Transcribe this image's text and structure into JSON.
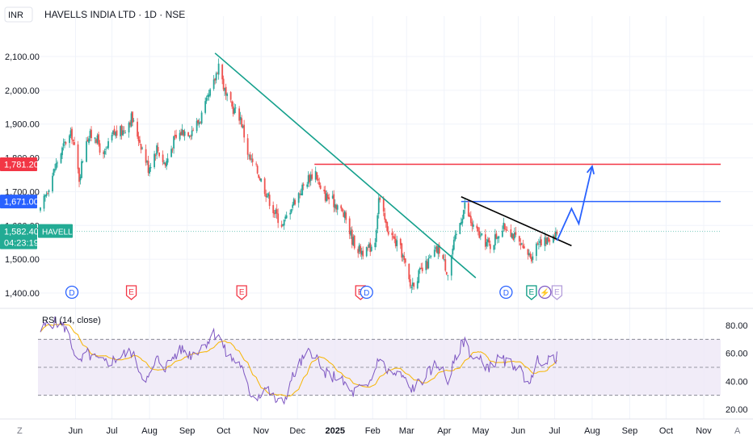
{
  "header": {
    "currency": "INR",
    "title": "HAVELLS INDIA LTD · 1D · NSE"
  },
  "colors": {
    "up": "#26a69a",
    "down": "#ef5350",
    "trendline_green": "#14a08c",
    "trendline_black": "#000000",
    "resistance_red": "#f23645",
    "support_blue": "#2962ff",
    "projection_blue": "#2962ff",
    "rsi_line": "#7e57c2",
    "rsi_ma": "#f7b500",
    "rsi_band": "#ede7f6",
    "price_tag_green": "#22ab94"
  },
  "price_axis": {
    "ticks": [
      {
        "label": "2,100.00",
        "value": 2100
      },
      {
        "label": "2,000.00",
        "value": 2000
      },
      {
        "label": "1,900.00",
        "value": 1900
      },
      {
        "label": "1,800.00",
        "value": 1800
      },
      {
        "label": "1,700.00",
        "value": 1700
      },
      {
        "label": "1,600.00",
        "value": 1600
      },
      {
        "label": "1,500.00",
        "value": 1500
      },
      {
        "label": "1,400.00",
        "value": 1400
      }
    ],
    "tag_red": "1,781.20",
    "tag_blue": "1,671.00",
    "tag_last_price": "1,582.40",
    "tag_countdown": "04:23:19",
    "symbol_tag": "HAVELLS"
  },
  "time_axis": {
    "labels": [
      {
        "text": "Jun",
        "bold": false
      },
      {
        "text": "Jul",
        "bold": false
      },
      {
        "text": "Aug",
        "bold": false
      },
      {
        "text": "Sep",
        "bold": false
      },
      {
        "text": "Oct",
        "bold": false
      },
      {
        "text": "Nov",
        "bold": false
      },
      {
        "text": "Dec",
        "bold": false
      },
      {
        "text": "2025",
        "bold": true
      },
      {
        "text": "Feb",
        "bold": false
      },
      {
        "text": "Mar",
        "bold": false
      },
      {
        "text": "Apr",
        "bold": false
      },
      {
        "text": "May",
        "bold": false
      },
      {
        "text": "Jun",
        "bold": false
      },
      {
        "text": "Jul",
        "bold": false
      },
      {
        "text": "Aug",
        "bold": false
      },
      {
        "text": "Sep",
        "bold": false
      },
      {
        "text": "Oct",
        "bold": false
      },
      {
        "text": "Nov",
        "bold": false
      }
    ],
    "z_label": "Z",
    "a_label": "A"
  },
  "event_markers": [
    {
      "letter": "D",
      "kind": "dividend",
      "date": "2024-05-29"
    },
    {
      "letter": "E",
      "kind": "earnings",
      "date": "2024-07-17"
    },
    {
      "letter": "E",
      "kind": "earnings",
      "date": "2024-10-16"
    },
    {
      "letter": "E",
      "kind": "earnings",
      "date": "2025-01-22"
    },
    {
      "letter": "D",
      "kind": "dividend",
      "date": "2025-01-27"
    },
    {
      "letter": "D",
      "kind": "dividend",
      "date": "2025-05-22"
    },
    {
      "letter": "E",
      "kind": "earnings-green",
      "date": "2025-06-12"
    },
    {
      "letter": "⚡",
      "kind": "split",
      "date": "2025-06-23"
    },
    {
      "letter": "E",
      "kind": "earnings-future",
      "date": "2025-07-03"
    }
  ],
  "rsi_panel": {
    "title": "RSI (14, close)",
    "ticks": [
      {
        "label": "80.00",
        "value": 80
      },
      {
        "label": "60.00",
        "value": 60
      },
      {
        "label": "40.00",
        "value": 40
      },
      {
        "label": "20.00",
        "value": 20
      }
    ],
    "upper_band": 70,
    "middle_band": 50,
    "lower_band": 30
  },
  "chart_data": {
    "type": "candlestick",
    "symbol": "HAVELLS",
    "interval": "1D",
    "x_range": [
      "2024-05-01",
      "2025-11-15"
    ],
    "price_range": [
      1350,
      2180
    ],
    "price_anchors": [
      {
        "date": "2024-05-03",
        "close": 1640
      },
      {
        "date": "2024-05-10",
        "close": 1720
      },
      {
        "date": "2024-05-17",
        "close": 1790
      },
      {
        "date": "2024-05-24",
        "close": 1850
      },
      {
        "date": "2024-05-29",
        "close": 1870
      },
      {
        "date": "2024-06-04",
        "close": 1740
      },
      {
        "date": "2024-06-10",
        "close": 1860
      },
      {
        "date": "2024-06-17",
        "close": 1870
      },
      {
        "date": "2024-06-24",
        "close": 1800
      },
      {
        "date": "2024-07-02",
        "close": 1870
      },
      {
        "date": "2024-07-10",
        "close": 1880
      },
      {
        "date": "2024-07-17",
        "close": 1920
      },
      {
        "date": "2024-07-25",
        "close": 1840
      },
      {
        "date": "2024-07-31",
        "close": 1770
      },
      {
        "date": "2024-08-07",
        "close": 1830
      },
      {
        "date": "2024-08-14",
        "close": 1780
      },
      {
        "date": "2024-08-21",
        "close": 1850
      },
      {
        "date": "2024-08-28",
        "close": 1880
      },
      {
        "date": "2024-09-04",
        "close": 1880
      },
      {
        "date": "2024-09-11",
        "close": 1910
      },
      {
        "date": "2024-09-18",
        "close": 1970
      },
      {
        "date": "2024-09-23",
        "close": 2020
      },
      {
        "date": "2024-09-27",
        "close": 2080
      },
      {
        "date": "2024-10-03",
        "close": 1980
      },
      {
        "date": "2024-10-08",
        "close": 1950
      },
      {
        "date": "2024-10-15",
        "close": 1920
      },
      {
        "date": "2024-10-22",
        "close": 1800
      },
      {
        "date": "2024-10-29",
        "close": 1760
      },
      {
        "date": "2024-11-05",
        "close": 1700
      },
      {
        "date": "2024-11-12",
        "close": 1640
      },
      {
        "date": "2024-11-19",
        "close": 1600
      },
      {
        "date": "2024-11-26",
        "close": 1660
      },
      {
        "date": "2024-12-03",
        "close": 1700
      },
      {
        "date": "2024-12-10",
        "close": 1740
      },
      {
        "date": "2024-12-16",
        "close": 1760
      },
      {
        "date": "2024-12-20",
        "close": 1700
      },
      {
        "date": "2024-12-27",
        "close": 1680
      },
      {
        "date": "2025-01-03",
        "close": 1660
      },
      {
        "date": "2025-01-10",
        "close": 1620
      },
      {
        "date": "2025-01-15",
        "close": 1560
      },
      {
        "date": "2025-01-20",
        "close": 1530
      },
      {
        "date": "2025-01-27",
        "close": 1520
      },
      {
        "date": "2025-02-03",
        "close": 1560
      },
      {
        "date": "2025-02-06",
        "close": 1680
      },
      {
        "date": "2025-02-12",
        "close": 1600
      },
      {
        "date": "2025-02-18",
        "close": 1560
      },
      {
        "date": "2025-02-25",
        "close": 1520
      },
      {
        "date": "2025-03-04",
        "close": 1420
      },
      {
        "date": "2025-03-10",
        "close": 1450
      },
      {
        "date": "2025-03-17",
        "close": 1480
      },
      {
        "date": "2025-03-24",
        "close": 1520
      },
      {
        "date": "2025-03-28",
        "close": 1530
      },
      {
        "date": "2025-04-04",
        "close": 1460
      },
      {
        "date": "2025-04-08",
        "close": 1530
      },
      {
        "date": "2025-04-14",
        "close": 1610
      },
      {
        "date": "2025-04-18",
        "close": 1660
      },
      {
        "date": "2025-04-24",
        "close": 1600
      },
      {
        "date": "2025-05-02",
        "close": 1560
      },
      {
        "date": "2025-05-09",
        "close": 1540
      },
      {
        "date": "2025-05-16",
        "close": 1580
      },
      {
        "date": "2025-05-23",
        "close": 1600
      },
      {
        "date": "2025-05-30",
        "close": 1560
      },
      {
        "date": "2025-06-06",
        "close": 1520
      },
      {
        "date": "2025-06-12",
        "close": 1510
      },
      {
        "date": "2025-06-18",
        "close": 1560
      },
      {
        "date": "2025-06-24",
        "close": 1550
      },
      {
        "date": "2025-06-30",
        "close": 1575
      },
      {
        "date": "2025-07-03",
        "close": 1582.4
      }
    ],
    "last_price": 1582.4,
    "horizontal_levels": [
      {
        "name": "resistance",
        "price": 1781.2,
        "from": "2024-12-15",
        "color": "#f23645"
      },
      {
        "name": "support",
        "price": 1671.0,
        "from": "2025-04-15",
        "color": "#2962ff"
      }
    ],
    "trendlines": [
      {
        "from": {
          "date": "2024-09-24",
          "price": 2110
        },
        "to": {
          "date": "2025-04-27",
          "price": 1445
        },
        "color": "#14a08c"
      },
      {
        "from": {
          "date": "2025-04-15",
          "price": 1685
        },
        "to": {
          "date": "2025-07-15",
          "price": 1540
        },
        "color": "#000000"
      }
    ],
    "projection_path": [
      {
        "date": "2025-07-03",
        "price": 1555
      },
      {
        "date": "2025-07-15",
        "price": 1650
      },
      {
        "date": "2025-07-21",
        "price": 1605
      },
      {
        "date": "2025-08-01",
        "price": 1775
      }
    ],
    "rsi": {
      "period": 14,
      "source": "close",
      "range": [
        15,
        90
      ],
      "anchors": [
        {
          "date": "2024-05-03",
          "value": 76
        },
        {
          "date": "2024-05-10",
          "value": 82
        },
        {
          "date": "2024-05-17",
          "value": 82
        },
        {
          "date": "2024-05-24",
          "value": 78
        },
        {
          "date": "2024-05-29",
          "value": 66
        },
        {
          "date": "2024-06-04",
          "value": 52
        },
        {
          "date": "2024-06-10",
          "value": 60
        },
        {
          "date": "2024-06-17",
          "value": 56
        },
        {
          "date": "2024-06-24",
          "value": 53
        },
        {
          "date": "2024-07-02",
          "value": 55
        },
        {
          "date": "2024-07-10",
          "value": 59
        },
        {
          "date": "2024-07-17",
          "value": 61
        },
        {
          "date": "2024-07-25",
          "value": 46
        },
        {
          "date": "2024-07-31",
          "value": 41
        },
        {
          "date": "2024-08-07",
          "value": 56
        },
        {
          "date": "2024-08-14",
          "value": 50
        },
        {
          "date": "2024-08-21",
          "value": 58
        },
        {
          "date": "2024-08-28",
          "value": 63
        },
        {
          "date": "2024-09-04",
          "value": 59
        },
        {
          "date": "2024-09-11",
          "value": 63
        },
        {
          "date": "2024-09-18",
          "value": 69
        },
        {
          "date": "2024-09-23",
          "value": 74
        },
        {
          "date": "2024-09-27",
          "value": 73
        },
        {
          "date": "2024-10-03",
          "value": 60
        },
        {
          "date": "2024-10-08",
          "value": 56
        },
        {
          "date": "2024-10-15",
          "value": 52
        },
        {
          "date": "2024-10-22",
          "value": 32
        },
        {
          "date": "2024-10-29",
          "value": 29
        },
        {
          "date": "2024-11-05",
          "value": 36
        },
        {
          "date": "2024-11-12",
          "value": 27
        },
        {
          "date": "2024-11-19",
          "value": 24
        },
        {
          "date": "2024-11-26",
          "value": 41
        },
        {
          "date": "2024-12-03",
          "value": 53
        },
        {
          "date": "2024-12-10",
          "value": 60
        },
        {
          "date": "2024-12-16",
          "value": 61
        },
        {
          "date": "2024-12-20",
          "value": 48
        },
        {
          "date": "2024-12-27",
          "value": 44
        },
        {
          "date": "2025-01-03",
          "value": 43
        },
        {
          "date": "2025-01-10",
          "value": 37
        },
        {
          "date": "2025-01-15",
          "value": 31
        },
        {
          "date": "2025-01-20",
          "value": 35
        },
        {
          "date": "2025-01-27",
          "value": 34
        },
        {
          "date": "2025-02-03",
          "value": 48
        },
        {
          "date": "2025-02-06",
          "value": 58
        },
        {
          "date": "2025-02-12",
          "value": 48
        },
        {
          "date": "2025-02-18",
          "value": 45
        },
        {
          "date": "2025-02-25",
          "value": 44
        },
        {
          "date": "2025-03-04",
          "value": 34
        },
        {
          "date": "2025-03-10",
          "value": 38
        },
        {
          "date": "2025-03-17",
          "value": 44
        },
        {
          "date": "2025-03-24",
          "value": 51
        },
        {
          "date": "2025-03-28",
          "value": 52
        },
        {
          "date": "2025-04-04",
          "value": 40
        },
        {
          "date": "2025-04-08",
          "value": 50
        },
        {
          "date": "2025-04-14",
          "value": 64
        },
        {
          "date": "2025-04-18",
          "value": 70
        },
        {
          "date": "2025-04-24",
          "value": 57
        },
        {
          "date": "2025-05-02",
          "value": 54
        },
        {
          "date": "2025-05-09",
          "value": 50
        },
        {
          "date": "2025-05-16",
          "value": 56
        },
        {
          "date": "2025-05-23",
          "value": 53
        },
        {
          "date": "2025-05-30",
          "value": 52
        },
        {
          "date": "2025-06-06",
          "value": 43
        },
        {
          "date": "2025-06-12",
          "value": 41
        },
        {
          "date": "2025-06-18",
          "value": 57
        },
        {
          "date": "2025-06-24",
          "value": 52
        },
        {
          "date": "2025-06-30",
          "value": 58
        },
        {
          "date": "2025-07-03",
          "value": 57
        }
      ]
    }
  }
}
